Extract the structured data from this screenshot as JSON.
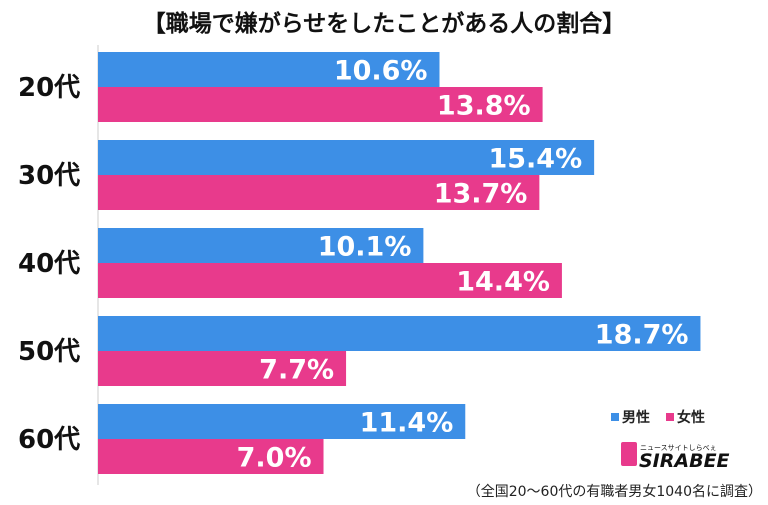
{
  "chart_data": {
    "type": "bar",
    "orientation": "horizontal",
    "title": "【職場で嫌がらせをしたことがある人の割合】",
    "categories": [
      "20代",
      "30代",
      "40代",
      "50代",
      "60代"
    ],
    "series": [
      {
        "name": "男性",
        "color": "#3d8fe6",
        "values": [
          10.6,
          15.4,
          10.1,
          18.7,
          11.4
        ],
        "labels": [
          "10.6%",
          "15.4%",
          "10.1%",
          "18.7%",
          "11.4%"
        ]
      },
      {
        "name": "女性",
        "color": "#e83a8c",
        "values": [
          13.8,
          13.7,
          14.4,
          7.7,
          7.0
        ],
        "labels": [
          "13.8%",
          "13.7%",
          "14.4%",
          "7.7%",
          "7.0%"
        ]
      }
    ],
    "xlim": [
      0,
      20.3
    ],
    "grid": false,
    "legend_position": "bottom-right",
    "note": "（全国20〜60代の有職者男女1040名に調査）"
  },
  "logo": {
    "main": "SIRABEE",
    "sub": "ニュースサイトしらべぇ"
  }
}
